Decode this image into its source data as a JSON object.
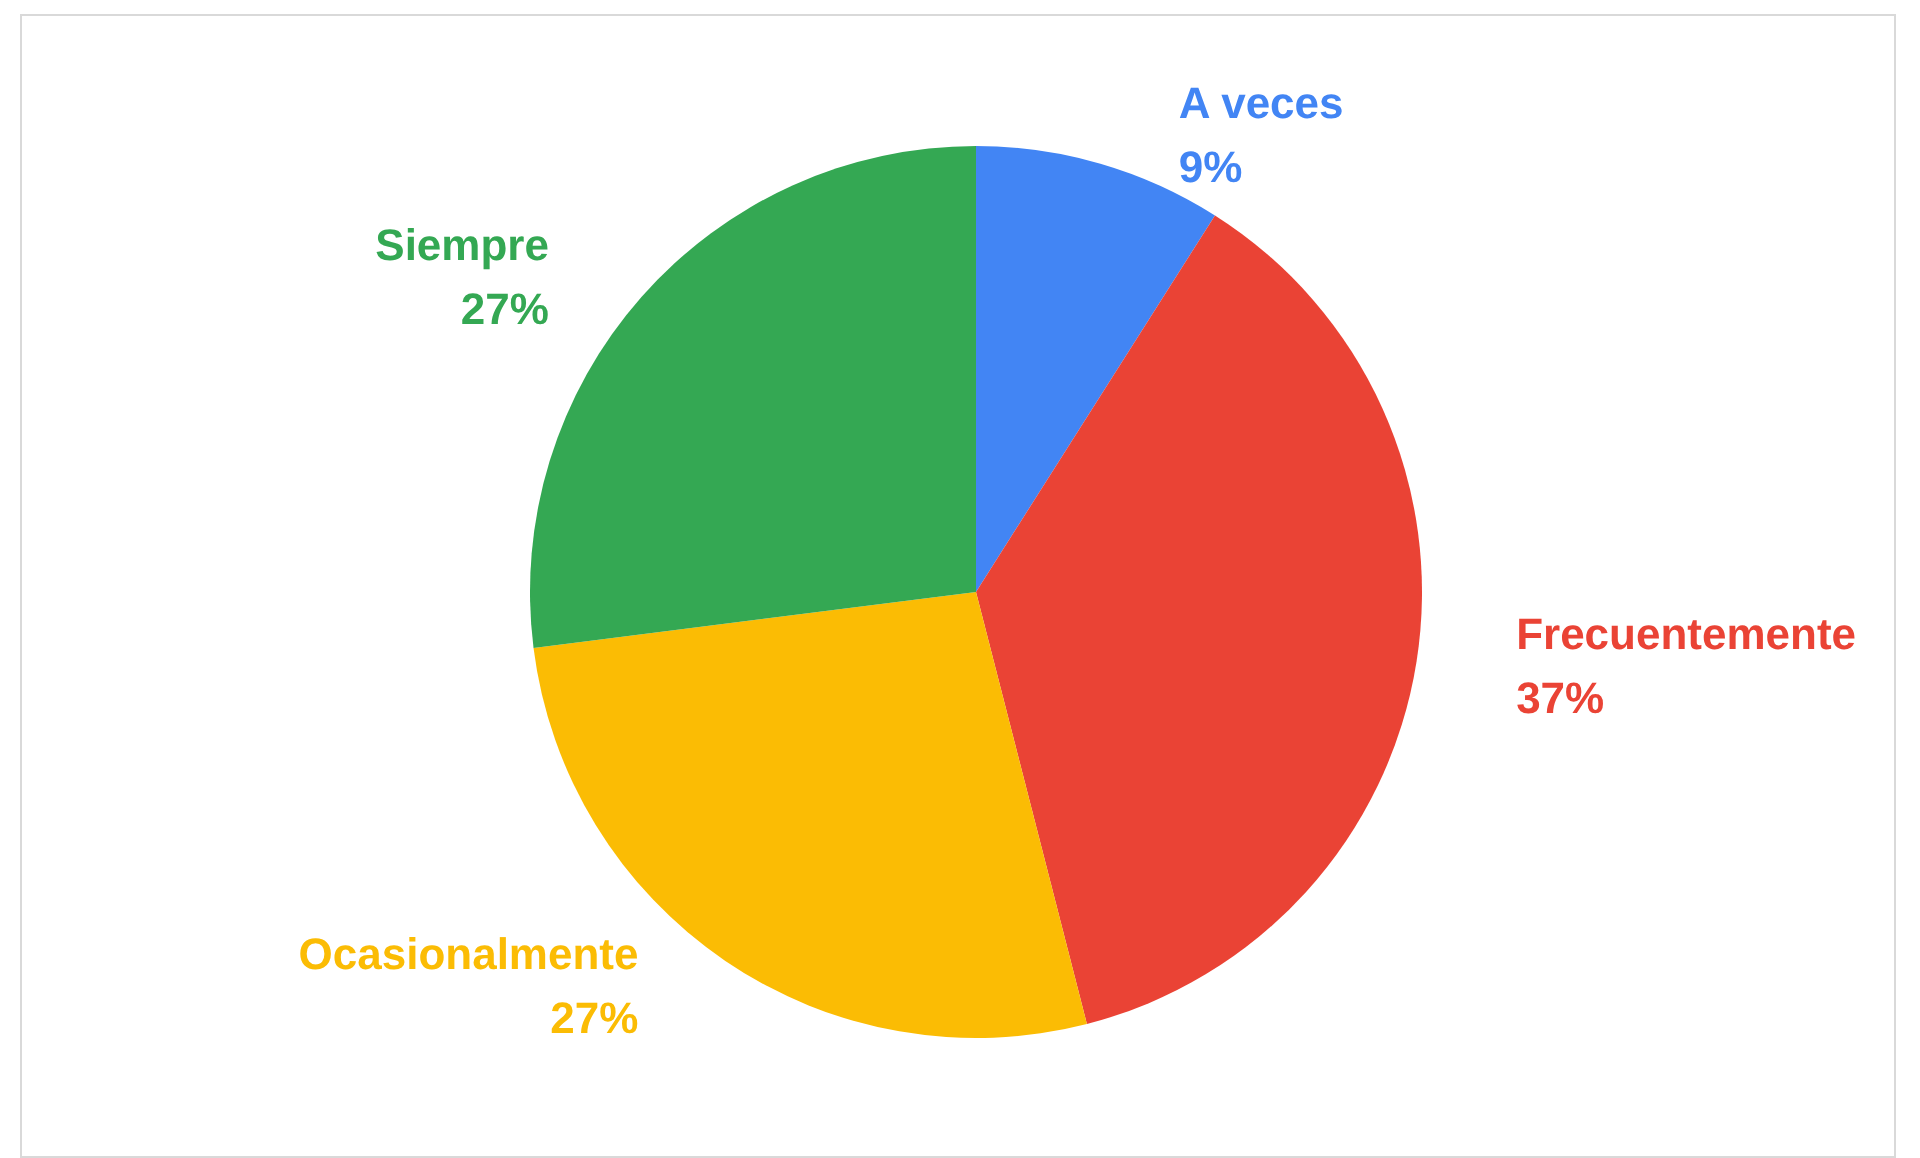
{
  "chart_data": {
    "type": "pie",
    "categories": [
      "A veces",
      "Frecuentemente",
      "Ocasionalmente",
      "Siempre"
    ],
    "values": [
      9,
      37,
      27,
      27
    ],
    "colors": [
      "#4285f4",
      "#ea4335",
      "#fbbc04",
      "#34a853"
    ],
    "value_labels": [
      "9%",
      "37%",
      "27%",
      "27%"
    ],
    "legend": false
  }
}
